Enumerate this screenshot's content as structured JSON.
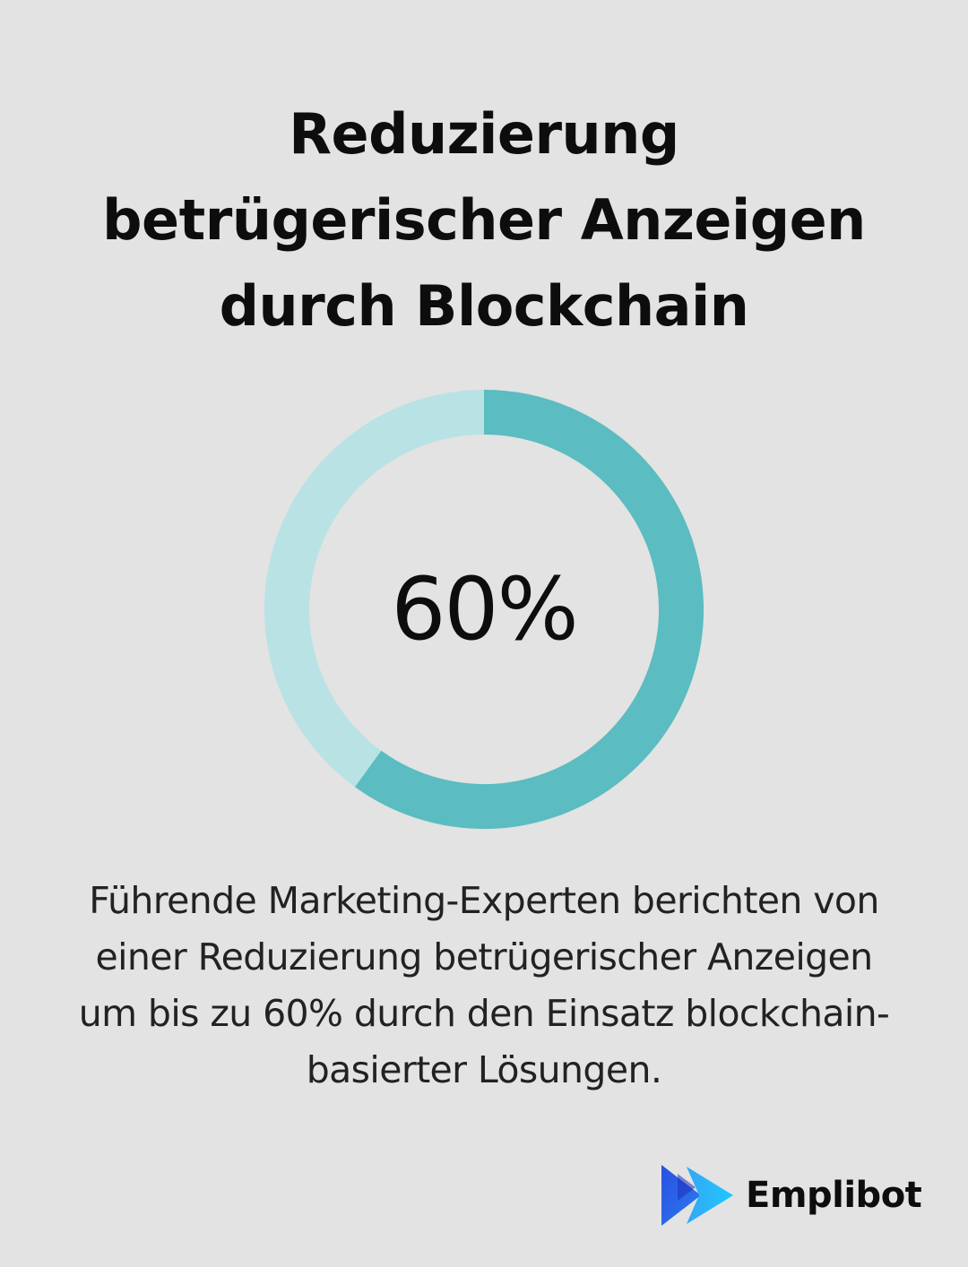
{
  "title_lines": [
    "Reduzierung",
    "betrügerischer Anzeigen",
    "durch Blockchain"
  ],
  "chart_data": {
    "type": "pie",
    "variant": "donut",
    "value": 60,
    "max": 100,
    "center_label": "60%",
    "colors": {
      "filled": "#5bbcc1",
      "remainder": "#b9e2e4"
    }
  },
  "caption_lines": [
    "Führende Marketing-Experten berichten von",
    "einer Reduzierung betrügerischer Anzeigen",
    "um bis zu 60% durch den Einsatz blockchain-",
    "basierter Lösungen."
  ],
  "brand": {
    "name": "Emplibot",
    "icon": "emplibot-play-logo-icon",
    "colors": {
      "primary": "#2a6ff0",
      "secondary": "#3bb0f5"
    }
  },
  "colors": {
    "background": "#e2e3e2",
    "text": "#0d0d0d"
  }
}
